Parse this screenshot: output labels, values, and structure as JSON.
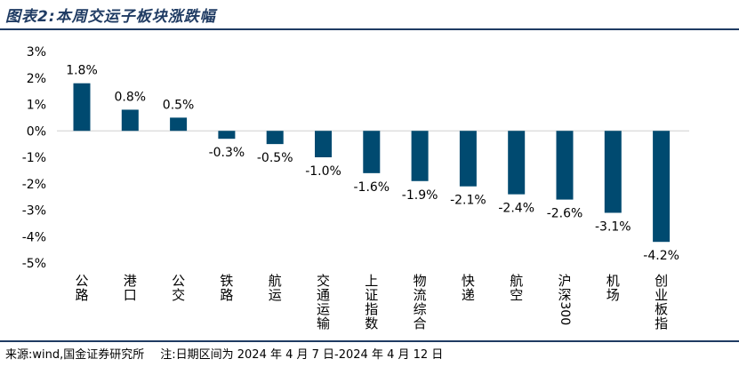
{
  "header": {
    "title": "图表2:本周交运子板块涨跌幅"
  },
  "footer": {
    "source": "来源:wind,国金证券研究所",
    "note": "注:日期区间为 2024 年 4 月 7 日-2024 年 4 月 12 日"
  },
  "colors": {
    "bar": "#004a70",
    "title": "#1f3b63",
    "axis": "#d0d0d0"
  },
  "chart_data": {
    "type": "bar",
    "title": "本周交运子板块涨跌幅",
    "xlabel": "",
    "ylabel": "",
    "ylim": [
      -5,
      3
    ],
    "yticks": [
      3,
      2,
      1,
      0,
      -1,
      -2,
      -3,
      -4,
      -5
    ],
    "ytick_labels": [
      "3%",
      "2%",
      "1%",
      "0%",
      "-1%",
      "-2%",
      "-3%",
      "-4%",
      "-5%"
    ],
    "categories": [
      "公路",
      "港口",
      "公交",
      "铁路",
      "航运",
      "交通运输",
      "上证指数",
      "物流综合",
      "快递",
      "航空",
      "沪深300",
      "机场",
      "创业板指"
    ],
    "values": [
      1.8,
      0.8,
      0.5,
      -0.3,
      -0.5,
      -1.0,
      -1.6,
      -1.9,
      -2.1,
      -2.4,
      -2.6,
      -3.1,
      -4.2
    ],
    "data_labels": [
      "1.8%",
      "0.8%",
      "0.5%",
      "-0.3%",
      "-0.5%",
      "-1.0%",
      "-1.6%",
      "-1.9%",
      "-2.1%",
      "-2.4%",
      "-2.6%",
      "-3.1%",
      "-4.2%"
    ],
    "grid": false,
    "legend": "none"
  }
}
